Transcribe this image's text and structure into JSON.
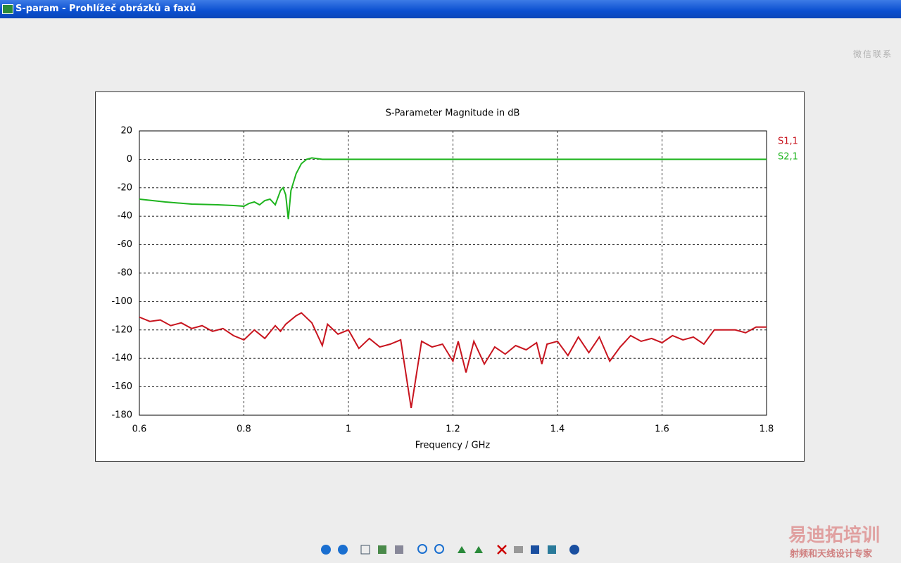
{
  "window": {
    "title": "S-param - Prohlížeč obrázků a faxů",
    "watermark_top": "微信联系",
    "watermark_brand": "易迪拓培训",
    "watermark_slogan": "射频和天线设计专家"
  },
  "chart_data": {
    "type": "line",
    "title": "S-Parameter Magnitude in dB",
    "xlabel": "Frequency / GHz",
    "xlim": [
      0.6,
      1.8
    ],
    "xticks": [
      0.6,
      0.8,
      1,
      1.2,
      1.4,
      1.6,
      1.8
    ],
    "ylim": [
      -180,
      20
    ],
    "yticks": [
      20,
      0,
      -20,
      -40,
      -60,
      -80,
      -100,
      -120,
      -140,
      -160,
      -180
    ],
    "grid": true,
    "legend": "right",
    "series": [
      {
        "name": "S1,1",
        "color": "#c8141e",
        "x": [
          0.6,
          0.62,
          0.64,
          0.66,
          0.68,
          0.7,
          0.72,
          0.74,
          0.76,
          0.78,
          0.8,
          0.82,
          0.84,
          0.86,
          0.87,
          0.88,
          0.9,
          0.91,
          0.93,
          0.95,
          0.96,
          0.98,
          1.0,
          1.02,
          1.04,
          1.06,
          1.08,
          1.1,
          1.12,
          1.14,
          1.16,
          1.18,
          1.2,
          1.21,
          1.225,
          1.24,
          1.26,
          1.28,
          1.3,
          1.32,
          1.34,
          1.36,
          1.37,
          1.38,
          1.4,
          1.42,
          1.44,
          1.46,
          1.48,
          1.5,
          1.52,
          1.54,
          1.56,
          1.58,
          1.6,
          1.62,
          1.64,
          1.66,
          1.68,
          1.7,
          1.74,
          1.76,
          1.78,
          1.8
        ],
        "values": [
          -111,
          -114,
          -113,
          -117,
          -115,
          -119,
          -117,
          -121,
          -119,
          -124,
          -127,
          -120,
          -126,
          -117,
          -121,
          -116,
          -110,
          -108,
          -115,
          -131,
          -116,
          -123,
          -120,
          -133,
          -126,
          -132,
          -130,
          -127,
          -175,
          -128,
          -132,
          -130,
          -142,
          -128,
          -150,
          -128,
          -144,
          -132,
          -137,
          -131,
          -134,
          -129,
          -144,
          -130,
          -128,
          -138,
          -125,
          -136,
          -125,
          -142,
          -132,
          -124,
          -128,
          -126,
          -129,
          -124,
          -127,
          -125,
          -130,
          -120,
          -120,
          -122,
          -118,
          -118
        ]
      },
      {
        "name": "S2,1",
        "color": "#1eb41e",
        "x": [
          0.6,
          0.65,
          0.7,
          0.75,
          0.78,
          0.8,
          0.81,
          0.82,
          0.83,
          0.84,
          0.85,
          0.86,
          0.87,
          0.875,
          0.88,
          0.885,
          0.89,
          0.9,
          0.91,
          0.92,
          0.93,
          0.94,
          0.95,
          1.0,
          1.8
        ],
        "values": [
          -28,
          -30,
          -31.5,
          -32,
          -32.5,
          -33,
          -31,
          -30,
          -32,
          -29,
          -28,
          -32,
          -22,
          -20,
          -25,
          -42,
          -22,
          -10,
          -3,
          0,
          1,
          0.5,
          0,
          0,
          0
        ]
      }
    ]
  }
}
